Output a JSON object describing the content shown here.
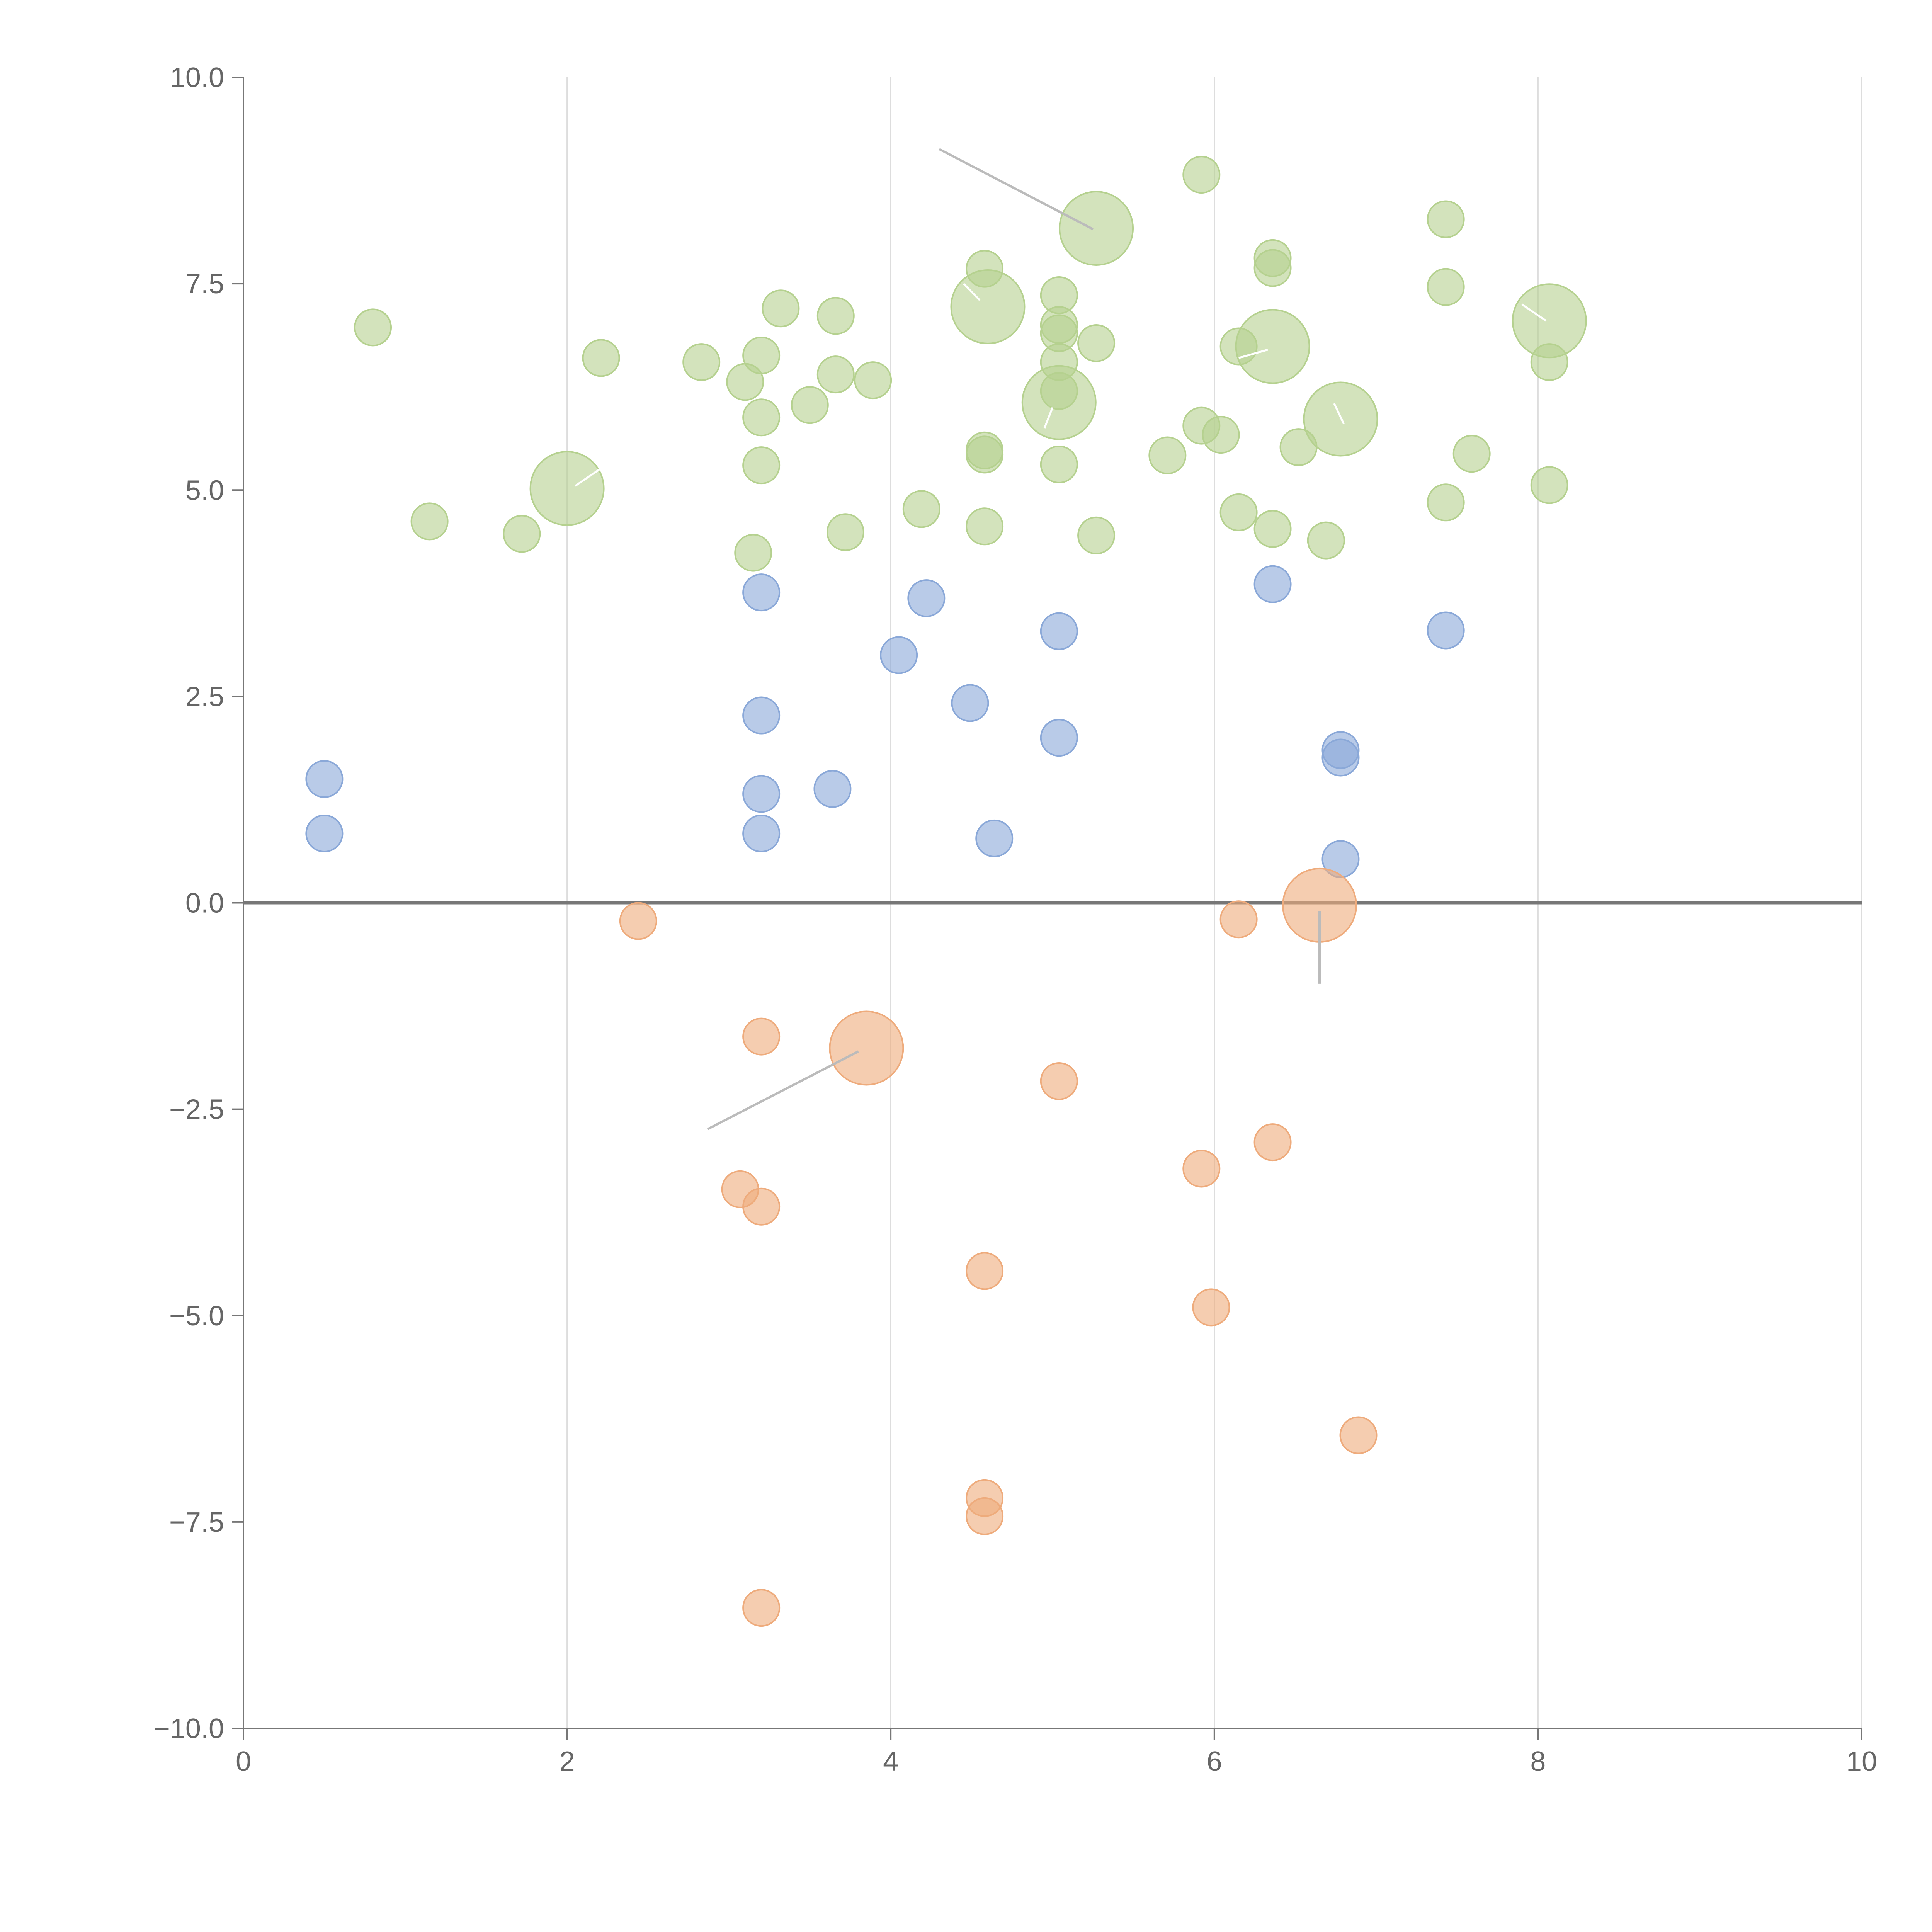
{
  "chart_data": {
    "type": "scatter",
    "title": "",
    "xlabel": "",
    "ylabel": "",
    "xlim": [
      0,
      10
    ],
    "ylim": [
      -10,
      10
    ],
    "x_ticks": [
      "0",
      "2",
      "4",
      "6",
      "8",
      "10"
    ],
    "y_ticks": [
      "10.0",
      "7.5",
      "5.0",
      "2.5",
      "0.0",
      "−2.5",
      "−5.0",
      "−7.5",
      "−10.0"
    ],
    "x_tick_values": [
      0,
      2,
      4,
      6,
      8,
      10
    ],
    "y_tick_values": [
      10,
      7.5,
      5,
      2.5,
      0,
      -2.5,
      -5,
      -7.5,
      -10
    ],
    "vertical_grid": true,
    "horizontal_grid": false,
    "zero_line": true,
    "legend": "none",
    "colors": {
      "green": "#b5d18f",
      "blue": "#8aa8d8",
      "orange": "#eeab7c",
      "axis": "#777777",
      "grid": "#dddddd",
      "zero_line": "#777777",
      "leader": "#bbbbbb",
      "leader_light": "#ffffff"
    },
    "series": [
      {
        "color": "green",
        "points": [
          {
            "x": 0.8,
            "y": 6.97
          },
          {
            "x": 1.15,
            "y": 4.62
          },
          {
            "x": 1.72,
            "y": 4.47
          },
          {
            "x": 2.21,
            "y": 6.6
          },
          {
            "x": 2.83,
            "y": 6.55
          },
          {
            "x": 3.1,
            "y": 6.31
          },
          {
            "x": 3.2,
            "y": 6.63
          },
          {
            "x": 3.2,
            "y": 5.88
          },
          {
            "x": 3.2,
            "y": 5.3
          },
          {
            "x": 3.15,
            "y": 4.24
          },
          {
            "x": 3.32,
            "y": 7.2
          },
          {
            "x": 3.5,
            "y": 6.03
          },
          {
            "x": 3.66,
            "y": 6.4
          },
          {
            "x": 3.66,
            "y": 7.11
          },
          {
            "x": 3.72,
            "y": 4.49
          },
          {
            "x": 3.89,
            "y": 6.33
          },
          {
            "x": 4.19,
            "y": 4.77
          },
          {
            "x": 4.58,
            "y": 7.68
          },
          {
            "x": 4.58,
            "y": 5.48
          },
          {
            "x": 4.58,
            "y": 5.43
          },
          {
            "x": 4.58,
            "y": 4.56
          },
          {
            "x": 5.04,
            "y": 7.36
          },
          {
            "x": 5.04,
            "y": 7.0
          },
          {
            "x": 5.04,
            "y": 6.9
          },
          {
            "x": 5.04,
            "y": 6.55
          },
          {
            "x": 5.04,
            "y": 6.2
          },
          {
            "x": 5.04,
            "y": 5.31
          },
          {
            "x": 5.27,
            "y": 6.78
          },
          {
            "x": 5.27,
            "y": 4.45
          },
          {
            "x": 5.71,
            "y": 5.42
          },
          {
            "x": 5.92,
            "y": 8.82
          },
          {
            "x": 5.92,
            "y": 5.78
          },
          {
            "x": 6.04,
            "y": 5.67
          },
          {
            "x": 6.15,
            "y": 6.74
          },
          {
            "x": 6.15,
            "y": 4.73
          },
          {
            "x": 6.36,
            "y": 7.81
          },
          {
            "x": 6.36,
            "y": 7.69
          },
          {
            "x": 6.36,
            "y": 4.53
          },
          {
            "x": 6.52,
            "y": 5.52
          },
          {
            "x": 6.69,
            "y": 4.39
          },
          {
            "x": 7.43,
            "y": 8.28
          },
          {
            "x": 7.43,
            "y": 7.46
          },
          {
            "x": 7.43,
            "y": 4.85
          },
          {
            "x": 7.59,
            "y": 5.44
          },
          {
            "x": 8.07,
            "y": 6.55
          },
          {
            "x": 8.07,
            "y": 5.06
          }
        ],
        "highlighted": [
          {
            "x": 2.0,
            "y": 5.02
          },
          {
            "x": 4.6,
            "y": 7.22
          },
          {
            "x": 5.27,
            "y": 8.17
          },
          {
            "x": 5.04,
            "y": 6.06
          },
          {
            "x": 6.36,
            "y": 6.74
          },
          {
            "x": 6.78,
            "y": 5.86
          },
          {
            "x": 8.07,
            "y": 7.05
          }
        ]
      },
      {
        "color": "blue",
        "points": [
          {
            "x": 0.5,
            "y": 1.5
          },
          {
            "x": 0.5,
            "y": 0.84
          },
          {
            "x": 3.2,
            "y": 3.76
          },
          {
            "x": 3.2,
            "y": 2.27
          },
          {
            "x": 3.2,
            "y": 1.32
          },
          {
            "x": 3.2,
            "y": 0.84
          },
          {
            "x": 3.64,
            "y": 1.38
          },
          {
            "x": 4.05,
            "y": 3.0
          },
          {
            "x": 4.22,
            "y": 3.69
          },
          {
            "x": 4.49,
            "y": 2.42
          },
          {
            "x": 4.64,
            "y": 0.78
          },
          {
            "x": 5.04,
            "y": 3.29
          },
          {
            "x": 5.04,
            "y": 2.0
          },
          {
            "x": 6.36,
            "y": 3.86
          },
          {
            "x": 6.78,
            "y": 1.85
          },
          {
            "x": 6.78,
            "y": 1.76
          },
          {
            "x": 6.78,
            "y": 0.53
          },
          {
            "x": 7.43,
            "y": 3.3
          }
        ],
        "highlighted": []
      },
      {
        "color": "orange",
        "points": [
          {
            "x": 2.44,
            "y": -0.22
          },
          {
            "x": 3.2,
            "y": -1.62
          },
          {
            "x": 3.07,
            "y": -3.47
          },
          {
            "x": 3.2,
            "y": -3.68
          },
          {
            "x": 3.2,
            "y": -8.54
          },
          {
            "x": 4.58,
            "y": -4.46
          },
          {
            "x": 4.58,
            "y": -7.21
          },
          {
            "x": 4.58,
            "y": -7.43
          },
          {
            "x": 5.04,
            "y": -2.16
          },
          {
            "x": 5.92,
            "y": -3.22
          },
          {
            "x": 5.98,
            "y": -4.9
          },
          {
            "x": 6.15,
            "y": -0.2
          },
          {
            "x": 6.36,
            "y": -2.9
          },
          {
            "x": 6.89,
            "y": -6.45
          }
        ],
        "highlighted": [
          {
            "x": 3.85,
            "y": -1.76
          },
          {
            "x": 6.65,
            "y": -0.03
          }
        ]
      }
    ],
    "leader_lines": [
      {
        "from": [
          4.3,
          9.13
        ],
        "to": [
          5.25,
          8.16
        ],
        "style": "gray"
      },
      {
        "from": [
          3.8,
          -1.8
        ],
        "to": [
          2.87,
          -2.74
        ],
        "style": "gray"
      },
      {
        "from": [
          6.65,
          -0.1
        ],
        "to": [
          6.65,
          -0.98
        ],
        "style": "gray"
      },
      {
        "from": [
          2.05,
          5.05
        ],
        "to": [
          2.2,
          5.25
        ],
        "style": "white"
      },
      {
        "from": [
          4.55,
          7.3
        ],
        "to": [
          4.45,
          7.5
        ],
        "style": "white"
      },
      {
        "from": [
          5.0,
          6.0
        ],
        "to": [
          4.95,
          5.75
        ],
        "style": "white"
      },
      {
        "from": [
          6.33,
          6.7
        ],
        "to": [
          6.15,
          6.6
        ],
        "style": "white"
      },
      {
        "from": [
          6.8,
          5.8
        ],
        "to": [
          6.74,
          6.05
        ],
        "style": "white"
      },
      {
        "from": [
          8.05,
          7.05
        ],
        "to": [
          7.9,
          7.25
        ],
        "style": "white"
      }
    ]
  }
}
